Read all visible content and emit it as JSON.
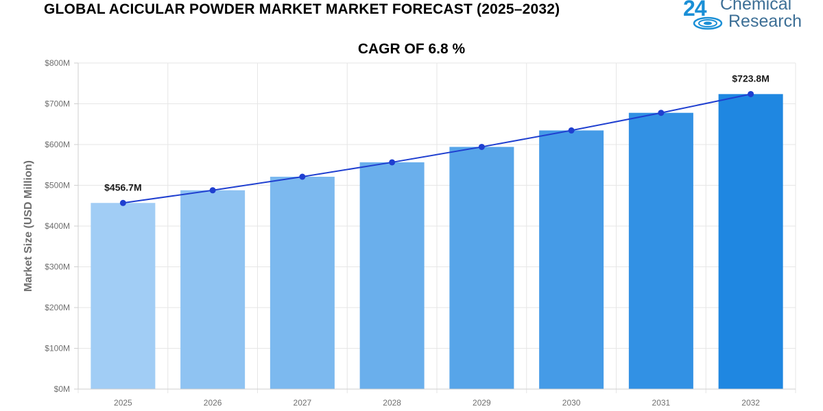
{
  "header": {
    "title": "GLOBAL ACICULAR POWDER MARKET MARKET FORECAST (2025–2032)",
    "subtitle": "CAGR OF 6.8 %"
  },
  "logo": {
    "number": "24",
    "line1": "Chemical",
    "line2": "Research",
    "color": "#1a8fd6"
  },
  "chart_data": {
    "type": "bar",
    "title": "GLOBAL ACICULAR POWDER MARKET MARKET FORECAST (2025–2032)",
    "subtitle": "CAGR OF 6.8 %",
    "categories": [
      "2025",
      "2026",
      "2027",
      "2028",
      "2029",
      "2030",
      "2031",
      "2032"
    ],
    "values": [
      456.7,
      487.8,
      521.0,
      556.4,
      594.2,
      634.6,
      677.8,
      723.8
    ],
    "trend_line": [
      456.7,
      487.8,
      521.0,
      556.4,
      594.2,
      634.6,
      677.8,
      723.8
    ],
    "bar_colors": [
      "#a1cdf5",
      "#8fc3f2",
      "#7cb9ef",
      "#6aafec",
      "#57a5e9",
      "#459be7",
      "#3291e4",
      "#1f87e1"
    ],
    "line_color": "#1f3fd0",
    "xlabel": "",
    "ylabel": "Market Size (USD Million)",
    "ylim": [
      0,
      800
    ],
    "yticks": [
      0,
      100,
      200,
      300,
      400,
      500,
      600,
      700,
      800
    ],
    "ytick_labels": [
      "$0M",
      "$100M",
      "$200M",
      "$300M",
      "$400M",
      "$500M",
      "$600M",
      "$700M",
      "$800M"
    ],
    "data_labels": [
      {
        "index": 0,
        "text": "$456.7M"
      },
      {
        "index": 7,
        "text": "$723.8M"
      }
    ],
    "grid": true
  }
}
